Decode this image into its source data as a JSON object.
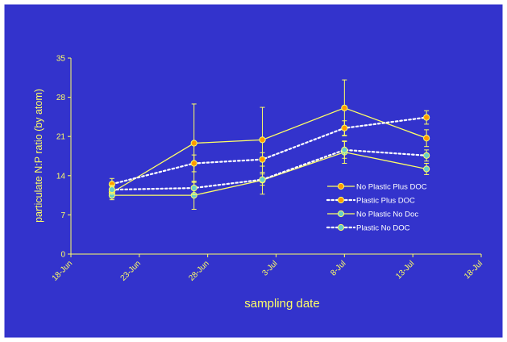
{
  "colors": {
    "background": "#3333cc",
    "frame": "#ffffff",
    "axis": "#ffff66",
    "line_no_plastic": "#ffff66",
    "line_plastic": "#ffffff",
    "marker_doc": "#ff9900",
    "marker_no_doc": "#66cccc",
    "marker_edge": "#ffff66"
  },
  "chart_data": {
    "type": "line",
    "title": "",
    "xlabel": "sampling date",
    "ylabel": "particulate N:P ratio (by atom)",
    "x_ticks": [
      "18-Jun",
      "23-Jun",
      "28-Jun",
      "3-Jul",
      "8-Jul",
      "13-Jul",
      "18-Jul"
    ],
    "x_domain": [
      "18-Jun",
      "18-Jul"
    ],
    "ylim": [
      0,
      35
    ],
    "y_ticks": [
      0,
      7,
      14,
      21,
      28,
      35
    ],
    "grid": false,
    "legend_position": "right",
    "series": [
      {
        "name": "No Plastic Plus DOC",
        "line_style": "solid",
        "line_color": "#ffff66",
        "marker_color": "#ff9900",
        "x": [
          "21-Jun",
          "27-Jun",
          "2-Jul",
          "8-Jul",
          "14-Jul"
        ],
        "y": [
          11.0,
          19.8,
          20.4,
          26.1,
          20.7
        ],
        "err": [
          1.0,
          7.0,
          5.8,
          5.0,
          1.5
        ]
      },
      {
        "name": "Plastic Plus DOC",
        "line_style": "dotted",
        "line_color": "#ffffff",
        "marker_color": "#ff9900",
        "x": [
          "21-Jun",
          "27-Jun",
          "2-Jul",
          "8-Jul",
          "14-Jul"
        ],
        "y": [
          12.5,
          16.2,
          16.9,
          22.5,
          24.4
        ],
        "err": [
          1.0,
          1.5,
          1.2,
          1.3,
          1.2
        ]
      },
      {
        "name": "No Plastic No Doc",
        "line_style": "solid",
        "line_color": "#ffff66",
        "marker_color": "#66cccc",
        "x": [
          "21-Jun",
          "27-Jun",
          "2-Jul",
          "8-Jul",
          "14-Jul"
        ],
        "y": [
          10.5,
          10.5,
          13.2,
          18.2,
          15.2
        ],
        "err": [
          0.8,
          2.5,
          2.5,
          2.0,
          1.0
        ]
      },
      {
        "name": "Plastic No DOC",
        "line_style": "dotted",
        "line_color": "#ffffff",
        "marker_color": "#66cccc",
        "x": [
          "21-Jun",
          "27-Jun",
          "2-Jul",
          "8-Jul",
          "14-Jul"
        ],
        "y": [
          11.5,
          11.8,
          13.3,
          18.6,
          17.6
        ],
        "err": [
          0.8,
          1.2,
          1.0,
          1.5,
          1.0
        ]
      }
    ]
  }
}
